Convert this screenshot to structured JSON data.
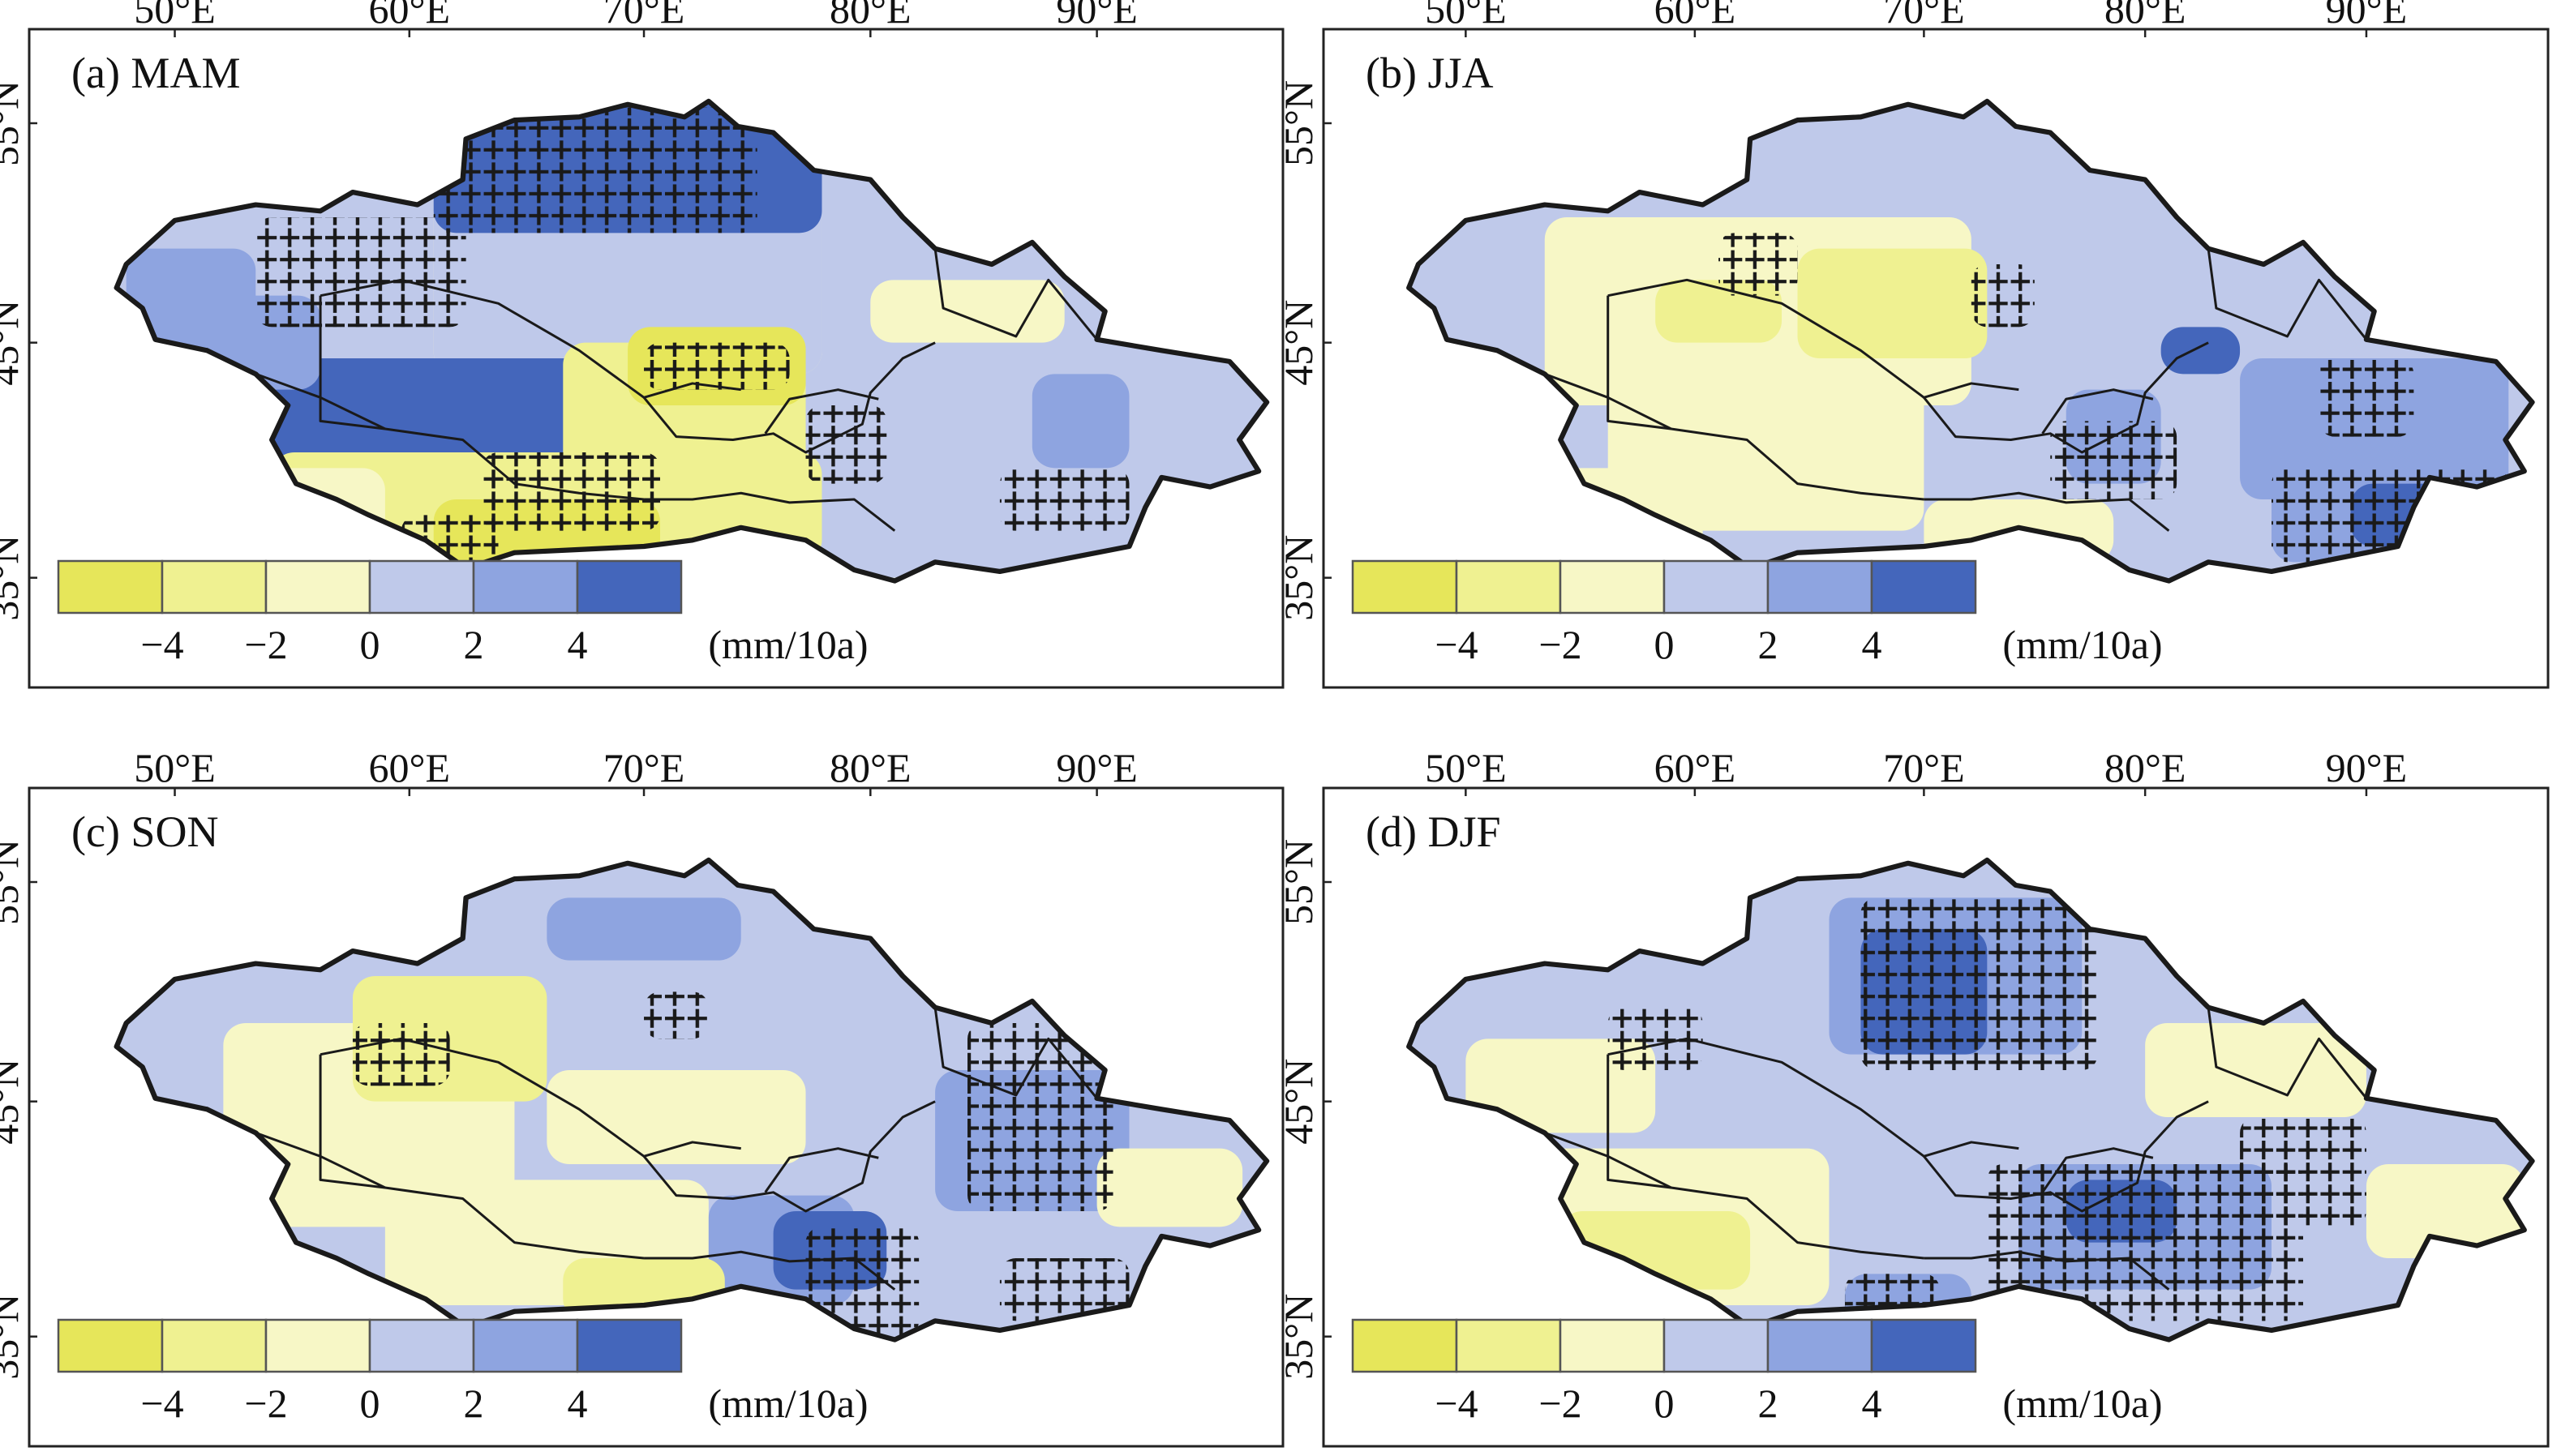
{
  "figure": {
    "lon_ticks": [
      "50°E",
      "60°E",
      "70°E",
      "80°E",
      "90°E"
    ],
    "lat_ticks": [
      "55°N",
      "45°N",
      "35°N"
    ],
    "legend_unit": "(mm/10a)",
    "legend_ticks": [
      "−4",
      "−2",
      "0",
      "2",
      "4"
    ],
    "legend_colors": [
      "#e6e65a",
      "#eff191",
      "#f7f7c6",
      "#bfc9ea",
      "#8ea4e0",
      "#4466bb"
    ],
    "panels": [
      {
        "id": "a",
        "label": "(a) MAM"
      },
      {
        "id": "b",
        "label": "(b) JJA"
      },
      {
        "id": "c",
        "label": "(c) SON"
      },
      {
        "id": "d",
        "label": "(d) DJF"
      }
    ]
  }
}
